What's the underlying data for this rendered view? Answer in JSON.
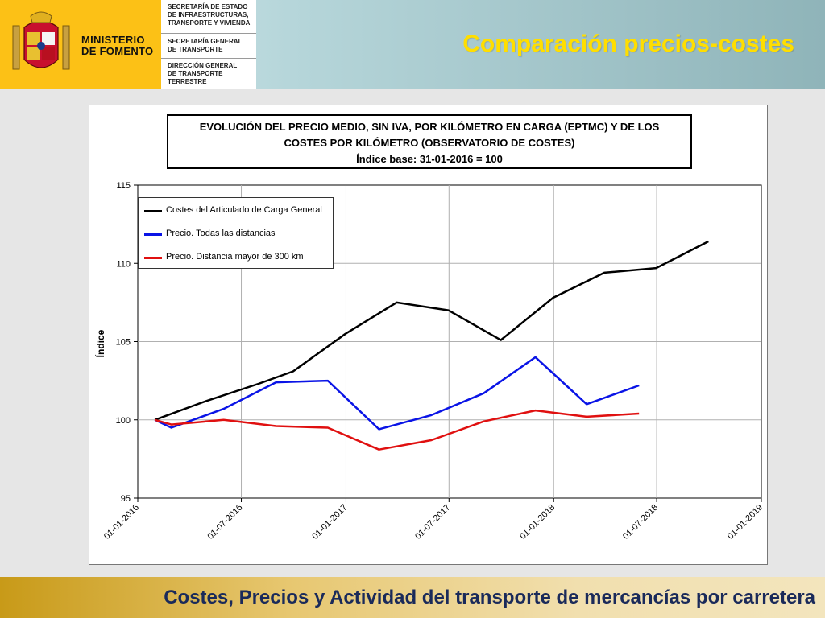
{
  "header": {
    "ministry_line1": "MINISTERIO",
    "ministry_line2": "DE FOMENTO",
    "dept1": [
      "SECRETARÍA DE ESTADO",
      "DE INFRAESTRUCTURAS,",
      "TRANSPORTE Y VIVIENDA"
    ],
    "dept2": [
      "SECRETARÍA GENERAL",
      "DE TRANSPORTE"
    ],
    "dept3": [
      "DIRECCIÓN GENERAL",
      "DE TRANSPORTE",
      "TERRESTRE"
    ],
    "slide_title": "Comparación precios-costes"
  },
  "footer": {
    "text": "Costes, Precios y Actividad del transporte de mercancías por carretera"
  },
  "colors": {
    "logo_yellow": "#fcc116",
    "title_yellow": "#ffde00",
    "footer_text": "#1a2a5a"
  },
  "chart_data": {
    "type": "line",
    "title_lines": [
      "EVOLUCIÓN DEL PRECIO MEDIO, SIN IVA, POR KILÓMETRO EN CARGA (EPTMC) Y DE LOS",
      "COSTES POR KILÓMETRO (OBSERVATORIO DE COSTES)",
      "Índice base: 31-01-2016 = 100"
    ],
    "ylabel": "Índice",
    "xlabel": "",
    "ylim": [
      95,
      115
    ],
    "yticks": [
      95,
      100,
      105,
      110,
      115
    ],
    "xlim": [
      "2016-01-01",
      "2019-01-01"
    ],
    "xticks": [
      "01-01-2016",
      "01-07-2016",
      "01-01-2017",
      "01-07-2017",
      "01-01-2018",
      "01-07-2018",
      "01-01-2019"
    ],
    "grid": true,
    "legend_position": "top-left",
    "series": [
      {
        "name": "Costes del Articulado de Carga General",
        "color": "#000000",
        "x": [
          "2016-01-31",
          "2016-04-30",
          "2016-07-31",
          "2016-09-30",
          "2016-12-31",
          "2017-03-31",
          "2017-06-30",
          "2017-09-30",
          "2017-12-31",
          "2018-03-31",
          "2018-06-30",
          "2018-09-30"
        ],
        "values": [
          100.0,
          101.2,
          102.3,
          103.1,
          105.5,
          107.5,
          107.0,
          105.1,
          107.8,
          109.4,
          109.7,
          111.4
        ]
      },
      {
        "name": "Precio. Todas las distancias",
        "color": "#0a14e6",
        "x": [
          "2016-01-31",
          "2016-02-29",
          "2016-05-31",
          "2016-08-31",
          "2016-11-30",
          "2017-02-28",
          "2017-05-31",
          "2017-08-31",
          "2017-11-30",
          "2018-02-28",
          "2018-05-31"
        ],
        "values": [
          100.0,
          99.5,
          100.7,
          102.4,
          102.5,
          99.4,
          100.3,
          101.7,
          104.0,
          101.0,
          102.2
        ]
      },
      {
        "name": "Precio. Distancia mayor de 300 km",
        "color": "#e01010",
        "x": [
          "2016-01-31",
          "2016-02-29",
          "2016-05-31",
          "2016-08-31",
          "2016-11-30",
          "2017-02-28",
          "2017-05-31",
          "2017-08-31",
          "2017-11-30",
          "2018-02-28",
          "2018-05-31"
        ],
        "values": [
          100.0,
          99.7,
          100.0,
          99.6,
          99.5,
          98.1,
          98.7,
          99.9,
          100.6,
          100.2,
          100.4
        ]
      }
    ]
  }
}
